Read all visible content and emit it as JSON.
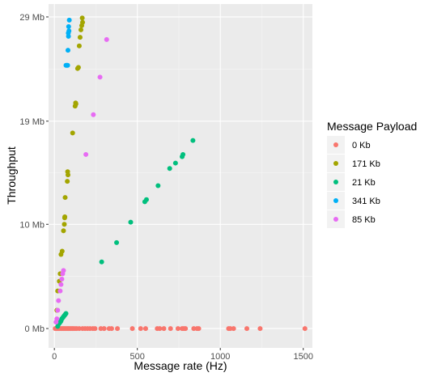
{
  "chart_data": {
    "type": "scatter",
    "xlabel": "Message rate (Hz)",
    "ylabel": "Throughput",
    "xlim": [
      -35,
      1555
    ],
    "ylim": [
      -1.8,
      30.2
    ],
    "x_ticks": [
      0,
      500,
      1000,
      1500
    ],
    "x_tick_labels": [
      "0",
      "500",
      "1000",
      "1500"
    ],
    "y_ticks": [
      0,
      9.7,
      19.3,
      29
    ],
    "y_tick_labels": [
      "0 Mb",
      "10 Mb",
      "19 Mb",
      "29 Mb"
    ],
    "grid": true,
    "legend": {
      "title": "Message Payload",
      "position": "right"
    },
    "series": [
      {
        "name": "0 Kb",
        "color": "#F8766D",
        "points": [
          [
            5,
            0
          ],
          [
            12,
            0
          ],
          [
            18,
            0
          ],
          [
            25,
            0
          ],
          [
            32,
            0
          ],
          [
            40,
            0
          ],
          [
            48,
            0
          ],
          [
            55,
            0
          ],
          [
            62,
            0
          ],
          [
            70,
            0
          ],
          [
            78,
            0
          ],
          [
            85,
            0
          ],
          [
            92,
            0
          ],
          [
            100,
            0
          ],
          [
            108,
            0
          ],
          [
            115,
            0
          ],
          [
            125,
            0
          ],
          [
            135,
            0
          ],
          [
            150,
            0
          ],
          [
            170,
            0
          ],
          [
            185,
            0
          ],
          [
            200,
            0
          ],
          [
            215,
            0
          ],
          [
            232,
            0
          ],
          [
            245,
            0
          ],
          [
            280,
            0
          ],
          [
            300,
            0
          ],
          [
            330,
            0
          ],
          [
            345,
            0
          ],
          [
            380,
            0
          ],
          [
            470,
            0
          ],
          [
            520,
            0
          ],
          [
            550,
            0
          ],
          [
            620,
            0
          ],
          [
            635,
            0
          ],
          [
            660,
            0
          ],
          [
            700,
            0
          ],
          [
            745,
            0
          ],
          [
            770,
            0
          ],
          [
            780,
            0
          ],
          [
            790,
            0
          ],
          [
            840,
            0
          ],
          [
            860,
            0
          ],
          [
            870,
            0
          ],
          [
            1050,
            0
          ],
          [
            1060,
            0
          ],
          [
            1080,
            0
          ],
          [
            1160,
            0
          ],
          [
            1240,
            0
          ],
          [
            1510,
            0
          ]
        ]
      },
      {
        "name": "171 Kb",
        "color": "#A3A500",
        "points": [
          [
            15,
            1.7
          ],
          [
            20,
            3.5
          ],
          [
            30,
            4.4
          ],
          [
            35,
            5.1
          ],
          [
            40,
            6.9
          ],
          [
            47,
            7.2
          ],
          [
            55,
            9.1
          ],
          [
            60,
            9.7
          ],
          [
            62,
            10.3
          ],
          [
            63,
            10.4
          ],
          [
            65,
            12.2
          ],
          [
            78,
            13.7
          ],
          [
            82,
            14.3
          ],
          [
            80,
            14.6
          ],
          [
            110,
            18.2
          ],
          [
            125,
            20.7
          ],
          [
            130,
            20.9
          ],
          [
            128,
            21.0
          ],
          [
            140,
            24.2
          ],
          [
            145,
            24.3
          ],
          [
            150,
            26.3
          ],
          [
            155,
            27.1
          ],
          [
            160,
            27.8
          ],
          [
            165,
            28.2
          ],
          [
            170,
            28.5
          ],
          [
            168,
            28.9
          ]
        ]
      },
      {
        "name": "21 Kb",
        "color": "#00BF7D",
        "points": [
          [
            20,
            0.2
          ],
          [
            25,
            0.4
          ],
          [
            30,
            0.5
          ],
          [
            35,
            0.6
          ],
          [
            40,
            0.7
          ],
          [
            45,
            0.9
          ],
          [
            50,
            1.0
          ],
          [
            55,
            1.1
          ],
          [
            60,
            1.2
          ],
          [
            65,
            1.3
          ],
          [
            70,
            1.4
          ],
          [
            285,
            6.2
          ],
          [
            375,
            8.0
          ],
          [
            460,
            9.9
          ],
          [
            545,
            11.8
          ],
          [
            555,
            12.0
          ],
          [
            625,
            13.3
          ],
          [
            695,
            14.9
          ],
          [
            730,
            15.4
          ],
          [
            770,
            16.0
          ],
          [
            775,
            16.2
          ],
          [
            835,
            17.5
          ]
        ]
      },
      {
        "name": "341 Kb",
        "color": "#00B0F6",
        "points": [
          [
            70,
            24.5
          ],
          [
            75,
            24.5
          ],
          [
            80,
            24.5
          ],
          [
            82,
            25.9
          ],
          [
            85,
            27.2
          ],
          [
            84,
            27.5
          ],
          [
            88,
            27.7
          ],
          [
            86,
            28.1
          ],
          [
            90,
            28.7
          ]
        ]
      },
      {
        "name": "85 Kb",
        "color": "#E76BF3",
        "points": [
          [
            10,
            0.6
          ],
          [
            15,
            0.9
          ],
          [
            20,
            1.7
          ],
          [
            25,
            2.6
          ],
          [
            35,
            3.5
          ],
          [
            40,
            4.1
          ],
          [
            45,
            4.6
          ],
          [
            50,
            5.1
          ],
          [
            55,
            5.4
          ],
          [
            190,
            16.2
          ],
          [
            235,
            19.9
          ],
          [
            275,
            23.4
          ],
          [
            315,
            26.9
          ]
        ]
      }
    ]
  }
}
